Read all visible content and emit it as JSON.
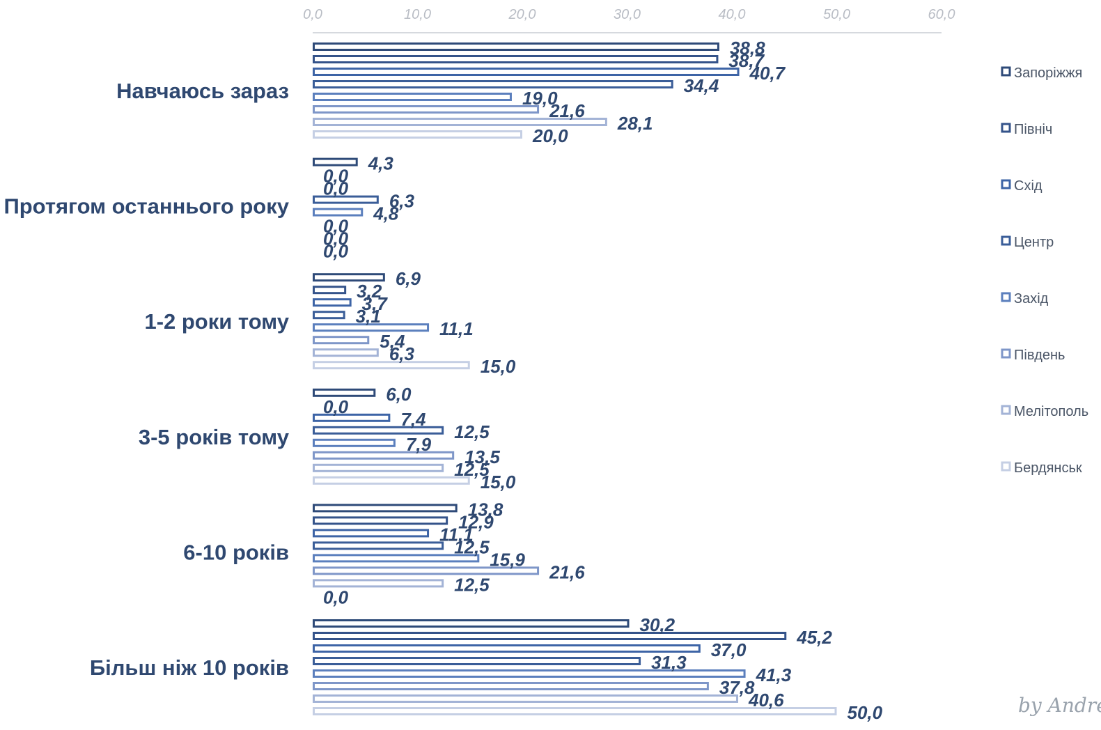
{
  "chart_data": {
    "type": "bar",
    "orientation": "horizontal",
    "categories": [
      "Навчаюсь зараз",
      "Протягом останнього року",
      "1-2 роки тому",
      "3-5 років тому",
      "6-10 років",
      "Більш ніж 10 років"
    ],
    "series": [
      {
        "name": "Запоріжжя",
        "color": "#2e4a78",
        "values": [
          38.8,
          4.3,
          6.9,
          6.0,
          13.8,
          30.2
        ],
        "labels": [
          "38,8",
          "4,3",
          "6,9",
          "6,0",
          "13,8",
          "30,2"
        ]
      },
      {
        "name": "Північ",
        "color": "#34538a",
        "values": [
          38.7,
          0.0,
          3.2,
          0.0,
          12.9,
          45.2
        ],
        "labels": [
          "38,7",
          "0,0",
          "3,2",
          "0,0",
          "12,9",
          "45,2"
        ]
      },
      {
        "name": "Схід",
        "color": "#3d64a6",
        "values": [
          40.7,
          0.0,
          3.7,
          7.4,
          11.1,
          37.0
        ],
        "labels": [
          "40,7",
          "0,0",
          "3,7",
          "7,4",
          "11,1",
          "37,0"
        ]
      },
      {
        "name": "Центр",
        "color": "#3a5d98",
        "values": [
          34.4,
          6.3,
          3.1,
          12.5,
          12.5,
          31.3
        ],
        "labels": [
          "34,4",
          "6,3",
          "3,1",
          "12,5",
          "12,5",
          "31,3"
        ]
      },
      {
        "name": "Захід",
        "color": "#5b7fbd",
        "values": [
          19.0,
          4.8,
          11.1,
          7.9,
          15.9,
          41.3
        ],
        "labels": [
          "19,0",
          "4,8",
          "11,1",
          "7,9",
          "15,9",
          "41,3"
        ]
      },
      {
        "name": "Південь",
        "color": "#7e96c8",
        "values": [
          21.6,
          0.0,
          5.4,
          13.5,
          21.6,
          37.8
        ],
        "labels": [
          "21,6",
          "0,0",
          "5,4",
          "13,5",
          "21,6",
          "37,8"
        ]
      },
      {
        "name": "Мелітополь",
        "color": "#a3b3d6",
        "values": [
          28.1,
          0.0,
          6.3,
          12.5,
          12.5,
          40.6
        ],
        "labels": [
          "28,1",
          "0,0",
          "6,3",
          "12,5",
          "12,5",
          "40,6"
        ]
      },
      {
        "name": "Бердянськ",
        "color": "#c5cfe4",
        "values": [
          20.0,
          0.0,
          15.0,
          15.0,
          0.0,
          50.0
        ],
        "labels": [
          "20,0",
          "0,0",
          "15,0",
          "15,0",
          "0,0",
          "50,0"
        ]
      }
    ],
    "xlim": [
      0,
      60
    ],
    "ticks": [
      0,
      10,
      20,
      30,
      40,
      50,
      60
    ],
    "tick_labels": [
      "0,0",
      "10,0",
      "20,0",
      "30,0",
      "40,0",
      "50,0",
      "60,0"
    ],
    "axis_position": "top",
    "grid": false,
    "legend_position": "right"
  },
  "signature": "by Andrey"
}
